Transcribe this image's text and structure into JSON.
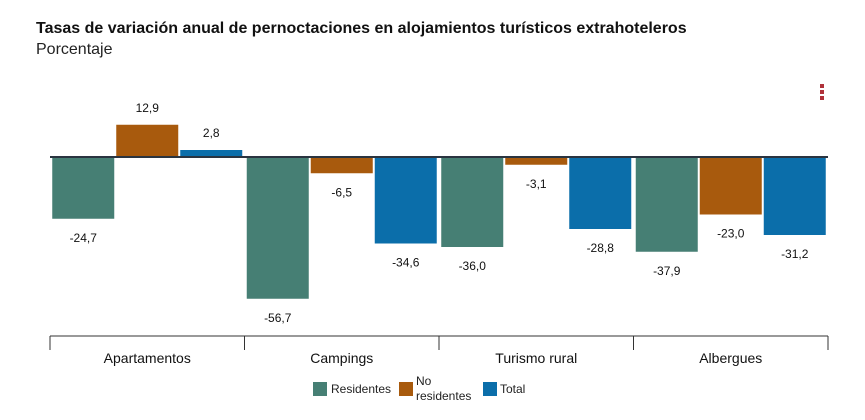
{
  "chart_data": {
    "type": "bar",
    "title": "Tasas de variación anual de pernoctaciones en alojamientos turísticos extrahoteleros",
    "subtitle": "Porcentaje",
    "categories": [
      "Apartamentos",
      "Campings",
      "Turismo rural",
      "Albergues"
    ],
    "series": [
      {
        "name": "Residentes",
        "color": "#467f74",
        "values": [
          -24.7,
          -56.7,
          -36.0,
          -37.9
        ],
        "labels": [
          "-24,7",
          "-56,7",
          "-36,0",
          "-37,9"
        ]
      },
      {
        "name": "No residentes",
        "color": "#a85a0d",
        "values": [
          12.9,
          -6.5,
          -3.1,
          -23.0
        ],
        "labels": [
          "12,9",
          "-6,5",
          "-3,1",
          "-23,0"
        ]
      },
      {
        "name": "Total",
        "color": "#0b6eaa",
        "values": [
          2.8,
          -34.6,
          -28.8,
          -31.2
        ],
        "labels": [
          "2,8",
          "-34,6",
          "-28,8",
          "-31,2"
        ]
      }
    ],
    "ylim": [
      -70,
      20
    ],
    "grid": false,
    "legend_position": "bottom-center"
  },
  "legend": {
    "items": [
      {
        "label": "Residentes",
        "color": "#467f74"
      },
      {
        "label": "No residentes",
        "color": "#a85a0d"
      },
      {
        "label": "Total",
        "color": "#0b6eaa"
      }
    ]
  },
  "menu_icon": "kebab-menu-icon"
}
